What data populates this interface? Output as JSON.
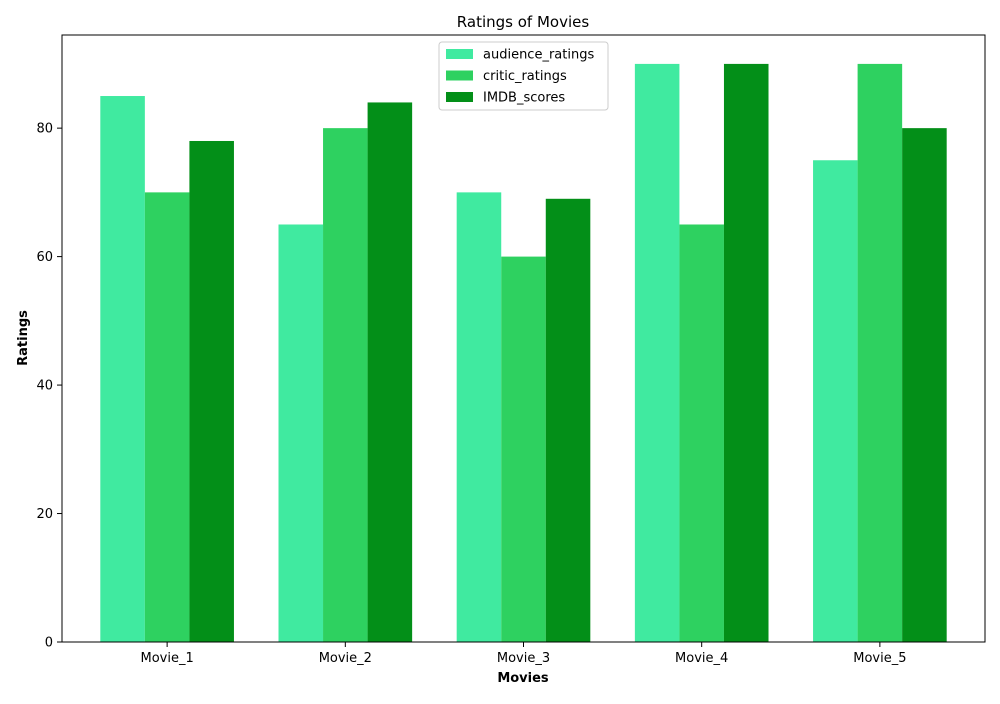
{
  "chart_data": {
    "type": "bar",
    "title": "Ratings of Movies",
    "xlabel": "Movies",
    "ylabel": "Ratings",
    "categories": [
      "Movie_1",
      "Movie_2",
      "Movie_3",
      "Movie_4",
      "Movie_5"
    ],
    "series": [
      {
        "name": "audience_ratings",
        "values": [
          85,
          65,
          70,
          90,
          75
        ],
        "color": "#40eaa0"
      },
      {
        "name": "critic_ratings",
        "values": [
          70,
          80,
          60,
          65,
          90
        ],
        "color": "#2ed160"
      },
      {
        "name": "IMDB_scores",
        "values": [
          78,
          84,
          69,
          90,
          80
        ],
        "color": "#038f18"
      }
    ],
    "ylim": [
      0,
      94.5
    ],
    "yticks": [
      0,
      20,
      40,
      60,
      80
    ],
    "grid": false,
    "legend": "upper-center"
  }
}
